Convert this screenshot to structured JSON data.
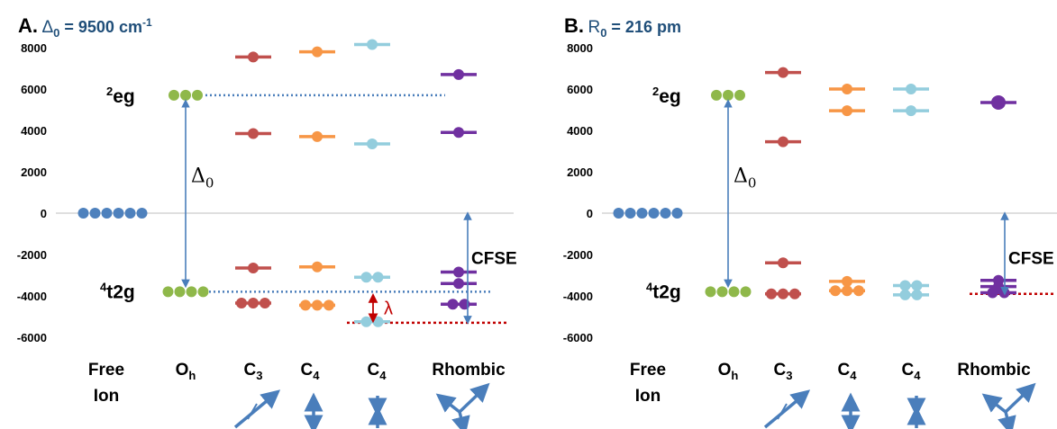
{
  "colors": {
    "free": "#4e81bd",
    "oh": "#8fb84a",
    "c3": "#c0504d",
    "c4": "#f79646",
    "c4b": "#93cddd",
    "rhombic": "#7030a0",
    "arrow": "#4a7ebb",
    "lambda": "#c00000",
    "title_blue": "#1f4e79",
    "axis_text": "#000000"
  },
  "panels": [
    {
      "id": "A",
      "letter": "A.",
      "subtitle_symbol": "Δ",
      "subtitle_sub": "0",
      "subtitle_rest": "= 9500 cm",
      "subtitle_sup": "-1",
      "y_ticks": [
        "8000",
        "6000",
        "4000",
        "2000",
        "0",
        "-2000",
        "-4000",
        "-6000"
      ],
      "y_tick_values": [
        8000,
        6000,
        4000,
        2000,
        0,
        -2000,
        -4000,
        -6000
      ],
      "label_eg_sup": "2",
      "label_eg": "eg",
      "label_t2g_sup": "4",
      "label_t2g": "t2g",
      "delta_symbol": "Δ",
      "delta_sub": "0",
      "cfse_label": "CFSE",
      "lambda_label": "λ",
      "x_labels": [
        {
          "main": "Free",
          "sub": "",
          "line2": "Ion"
        },
        {
          "main": "O",
          "sub": "h",
          "line2": ""
        },
        {
          "main": "C",
          "sub": "3",
          "line2": ""
        },
        {
          "main": "C",
          "sub": "4",
          "line2": ""
        },
        {
          "main": "C",
          "sub": "4",
          "line2": ""
        },
        {
          "main": "Rhombic",
          "sub": "",
          "line2": ""
        }
      ],
      "levels": [
        {
          "col": 0,
          "energy": 0,
          "dots": 6,
          "color": "free",
          "bar": false
        },
        {
          "col": 1,
          "energy": 5700,
          "dots": 3,
          "color": "oh",
          "bar": false
        },
        {
          "col": 1,
          "energy": -3800,
          "dots": 4,
          "color": "oh",
          "bar": false
        },
        {
          "col": 2,
          "energy": 7550,
          "dots": 1,
          "color": "c3",
          "bar": true
        },
        {
          "col": 2,
          "energy": 3850,
          "dots": 1,
          "color": "c3",
          "bar": true
        },
        {
          "col": 2,
          "energy": -2650,
          "dots": 1,
          "color": "c3",
          "bar": true
        },
        {
          "col": 2,
          "energy": -4350,
          "dots": 3,
          "color": "c3",
          "bar": true
        },
        {
          "col": 3,
          "energy": 7800,
          "dots": 1,
          "color": "c4",
          "bar": true
        },
        {
          "col": 3,
          "energy": 3700,
          "dots": 1,
          "color": "c4",
          "bar": true
        },
        {
          "col": 3,
          "energy": -2600,
          "dots": 1,
          "color": "c4",
          "bar": true
        },
        {
          "col": 3,
          "energy": -4450,
          "dots": 3,
          "color": "c4",
          "bar": true
        },
        {
          "col": 4,
          "energy": 8150,
          "dots": 1,
          "color": "c4b",
          "bar": true
        },
        {
          "col": 4,
          "energy": 3350,
          "dots": 1,
          "color": "c4b",
          "bar": true
        },
        {
          "col": 4,
          "energy": -3100,
          "dots": 2,
          "color": "c4b",
          "bar": true
        },
        {
          "col": 4,
          "energy": -5250,
          "dots": 2,
          "color": "c4b",
          "bar": true
        },
        {
          "col": 5,
          "energy": 6700,
          "dots": 1,
          "color": "rhombic",
          "bar": true
        },
        {
          "col": 5,
          "energy": 3900,
          "dots": 1,
          "color": "rhombic",
          "bar": true
        },
        {
          "col": 5,
          "energy": -2850,
          "dots": 1,
          "color": "rhombic",
          "bar": true
        },
        {
          "col": 5,
          "energy": -3400,
          "dots": 1,
          "color": "rhombic",
          "bar": true
        },
        {
          "col": 5,
          "energy": -4400,
          "dots": 2,
          "color": "rhombic",
          "bar": true
        }
      ],
      "eg_line_energy": 5700,
      "t2g_line_energy": -3800,
      "red_line_energy": -5300,
      "cfse_top": 0,
      "cfse_bottom": -5300
    },
    {
      "id": "B",
      "letter": "B.",
      "subtitle_symbol": "R",
      "subtitle_sub": "0",
      "subtitle_rest": " = 216 pm",
      "subtitle_sup": "",
      "y_ticks": [
        "8000",
        "6000",
        "4000",
        "2000",
        "0",
        "-2000",
        "-4000",
        "-6000"
      ],
      "y_tick_values": [
        8000,
        6000,
        4000,
        2000,
        0,
        -2000,
        -4000,
        -6000
      ],
      "label_eg_sup": "2",
      "label_eg": "eg",
      "label_t2g_sup": "4",
      "label_t2g": "t2g",
      "delta_symbol": "Δ",
      "delta_sub": "0",
      "cfse_label": "CFSE",
      "lambda_label": "",
      "x_labels": [
        {
          "main": "Free",
          "sub": "",
          "line2": "Ion"
        },
        {
          "main": "O",
          "sub": "h",
          "line2": ""
        },
        {
          "main": "C",
          "sub": "3",
          "line2": ""
        },
        {
          "main": "C",
          "sub": "4",
          "line2": ""
        },
        {
          "main": "C",
          "sub": "4",
          "line2": ""
        },
        {
          "main": "Rhombic",
          "sub": "",
          "line2": ""
        }
      ],
      "levels": [
        {
          "col": 0,
          "energy": 0,
          "dots": 6,
          "color": "free",
          "bar": false
        },
        {
          "col": 1,
          "energy": 5700,
          "dots": 3,
          "color": "oh",
          "bar": false
        },
        {
          "col": 1,
          "energy": -3800,
          "dots": 4,
          "color": "oh",
          "bar": false
        },
        {
          "col": 2,
          "energy": 6800,
          "dots": 1,
          "color": "c3",
          "bar": true
        },
        {
          "col": 2,
          "energy": 3450,
          "dots": 1,
          "color": "c3",
          "bar": true
        },
        {
          "col": 2,
          "energy": -2400,
          "dots": 1,
          "color": "c3",
          "bar": true
        },
        {
          "col": 2,
          "energy": -3900,
          "dots": 3,
          "color": "c3",
          "bar": true
        },
        {
          "col": 3,
          "energy": 6000,
          "dots": 1,
          "color": "c4",
          "bar": true
        },
        {
          "col": 3,
          "energy": 4950,
          "dots": 1,
          "color": "c4",
          "bar": true
        },
        {
          "col": 3,
          "energy": -3300,
          "dots": 1,
          "color": "c4",
          "bar": true
        },
        {
          "col": 3,
          "energy": -3750,
          "dots": 3,
          "color": "c4",
          "bar": true
        },
        {
          "col": 4,
          "energy": 6000,
          "dots": 1,
          "color": "c4b",
          "bar": true
        },
        {
          "col": 4,
          "energy": 4950,
          "dots": 1,
          "color": "c4b",
          "bar": true
        },
        {
          "col": 4,
          "energy": -3500,
          "dots": 2,
          "color": "c4b",
          "bar": true
        },
        {
          "col": 4,
          "energy": -3950,
          "dots": 2,
          "color": "c4b",
          "bar": true
        },
        {
          "col": 5,
          "energy": 5350,
          "dots": 1,
          "color": "rhombic",
          "bar": true,
          "big": true
        },
        {
          "col": 5,
          "energy": -3250,
          "dots": 1,
          "color": "rhombic",
          "bar": true
        },
        {
          "col": 5,
          "energy": -3550,
          "dots": 1,
          "color": "rhombic",
          "bar": true
        },
        {
          "col": 5,
          "energy": -3850,
          "dots": 2,
          "color": "rhombic",
          "bar": true
        }
      ],
      "eg_line_energy": null,
      "t2g_line_energy": null,
      "red_line_energy": -3900,
      "cfse_top": 0,
      "cfse_bottom": -3900
    }
  ]
}
